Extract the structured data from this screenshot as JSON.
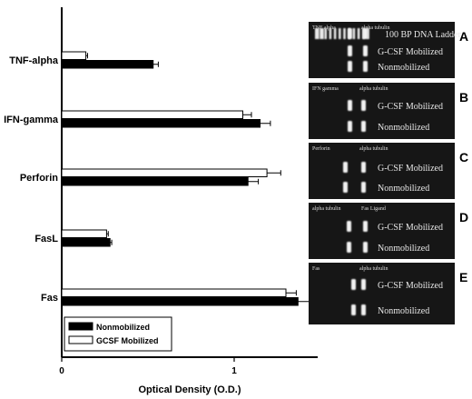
{
  "chart_data": {
    "type": "bar",
    "orientation": "horizontal",
    "categories": [
      "TNF-alpha",
      "IFN-gamma",
      "Perforin",
      "FasL",
      "Fas"
    ],
    "series": [
      {
        "name": "GCSF Mobilized",
        "color": "#ffffff",
        "values": [
          0.14,
          1.05,
          1.19,
          0.26,
          1.3
        ],
        "errors": [
          0.01,
          0.05,
          0.08,
          0.01,
          0.06
        ]
      },
      {
        "name": "Nonmobilized",
        "color": "#000000",
        "values": [
          0.53,
          1.15,
          1.08,
          0.28,
          1.37
        ],
        "errors": [
          0.03,
          0.06,
          0.06,
          0.01,
          0.07
        ]
      }
    ],
    "xlabel": "Optical Density (O.D.)",
    "xlim": [
      0,
      1.5
    ],
    "xticks": [
      "0",
      "1"
    ],
    "legend": {
      "position": "bottom-left",
      "entries": [
        "Nonmobilized",
        "GCSF Mobilized"
      ]
    }
  },
  "gels": [
    {
      "letter": "A",
      "lane_labels": [
        "TNF alpha",
        "alpha tubulin"
      ],
      "row_labels": [
        "100 BP DNA Ladder",
        "G-CSF Mobilized",
        "Nonmobilized"
      ]
    },
    {
      "letter": "B",
      "lane_labels": [
        "IFN gamma",
        "alpha tubulin"
      ],
      "row_labels": [
        "G-CSF Mobilized",
        "Nonmobilized"
      ]
    },
    {
      "letter": "C",
      "lane_labels": [
        "Perforin",
        "alpha tubulin"
      ],
      "row_labels": [
        "G-CSF Mobilized",
        "Nonmobilized"
      ]
    },
    {
      "letter": "D",
      "lane_labels": [
        "alpha tubulin",
        "Fas Ligand"
      ],
      "row_labels": [
        "G-CSF Mobilized",
        "Nonmobilized"
      ]
    },
    {
      "letter": "E",
      "lane_labels": [
        "Fas",
        "alpha tubulin"
      ],
      "row_labels": [
        "G-CSF Mobilized",
        "Nonmobilized"
      ]
    }
  ]
}
